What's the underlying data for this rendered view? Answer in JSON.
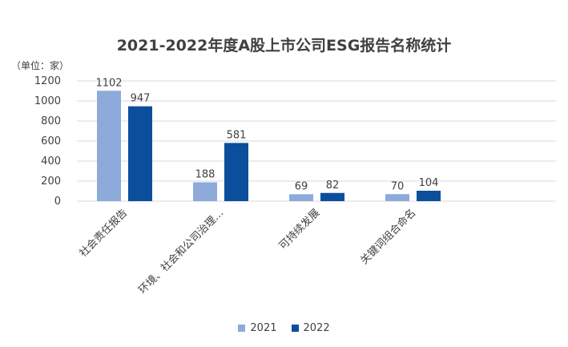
{
  "chart_data": {
    "type": "bar",
    "title": "2021-2022年度A股上市公司ESG报告名称统计",
    "unit_label": "（单位：家）",
    "categories": [
      "社会责任报告",
      "环境、社会和公司治理…",
      "可持续发展",
      "关键词组合命名"
    ],
    "series": [
      {
        "name": "2021",
        "values": [
          1102,
          188,
          69,
          70
        ],
        "color": "#8eaadb"
      },
      {
        "name": "2022",
        "values": [
          947,
          581,
          82,
          104
        ],
        "color": "#0b4f9c"
      }
    ],
    "ylim": [
      0,
      1200
    ],
    "yticks": [
      0,
      200,
      400,
      600,
      800,
      1000,
      1200
    ],
    "grid": true,
    "legend": "bottom"
  }
}
